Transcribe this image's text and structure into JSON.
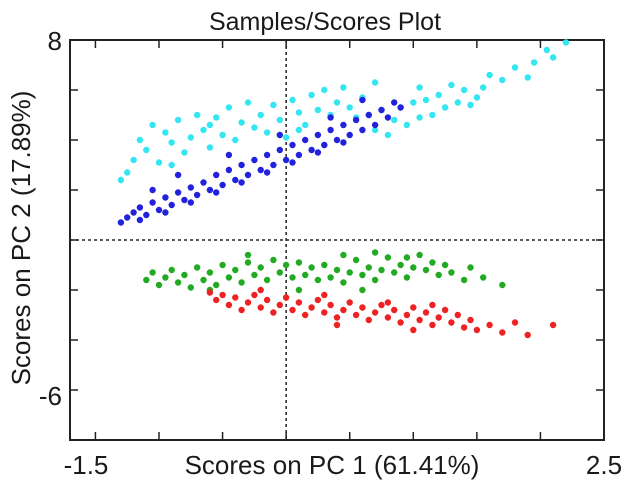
{
  "chart_data": {
    "type": "scatter",
    "title": "Samples/Scores Plot",
    "xlabel": "Scores on PC 1 (61.41%)",
    "ylabel": "Scores on PC 2 (17.89%)",
    "xlim": [
      -1.7,
      2.5
    ],
    "ylim": [
      -8,
      8
    ],
    "x_tick_labels": [
      "-1.5",
      "2.5"
    ],
    "y_tick_labels": [
      "8",
      "-6"
    ],
    "x_tick_values": [
      -1.5,
      2.5
    ],
    "y_tick_values": [
      8,
      -6
    ],
    "zero_lines": true,
    "grid": false,
    "legend": "none",
    "colors": {
      "cyan": "#33e6f2",
      "blue": "#2222dd",
      "green": "#22aa22",
      "red": "#ee2222",
      "axis": "#222222"
    },
    "series": [
      {
        "color": "cyan",
        "points": [
          [
            -1.3,
            2.4
          ],
          [
            -1.25,
            2.7
          ],
          [
            -1.2,
            3.2
          ],
          [
            -1.15,
            4.0
          ],
          [
            -1.1,
            3.6
          ],
          [
            -1.05,
            4.6
          ],
          [
            -1.0,
            3.1
          ],
          [
            -0.95,
            4.3
          ],
          [
            -0.9,
            3.9
          ],
          [
            -0.85,
            4.8
          ],
          [
            -0.8,
            3.5
          ],
          [
            -0.75,
            4.1
          ],
          [
            -0.7,
            5.0
          ],
          [
            -0.65,
            4.4
          ],
          [
            -0.6,
            3.7
          ],
          [
            -0.55,
            4.9
          ],
          [
            -0.5,
            4.2
          ],
          [
            -0.45,
            5.3
          ],
          [
            -0.4,
            4.0
          ],
          [
            -0.35,
            4.7
          ],
          [
            -0.3,
            5.5
          ],
          [
            -0.25,
            4.5
          ],
          [
            -0.2,
            5.0
          ],
          [
            -0.15,
            4.3
          ],
          [
            -0.1,
            5.4
          ],
          [
            -0.05,
            4.8
          ],
          [
            0.0,
            4.1
          ],
          [
            0.05,
            5.6
          ],
          [
            0.1,
            5.1
          ],
          [
            0.15,
            4.6
          ],
          [
            0.2,
            5.8
          ],
          [
            0.25,
            5.2
          ],
          [
            0.3,
            6.0
          ],
          [
            0.35,
            5.0
          ],
          [
            0.4,
            5.5
          ],
          [
            0.45,
            6.1
          ],
          [
            0.5,
            5.3
          ],
          [
            0.55,
            4.9
          ],
          [
            0.6,
            5.7
          ],
          [
            0.65,
            5.0
          ],
          [
            0.7,
            4.4
          ],
          [
            0.75,
            5.2
          ],
          [
            0.8,
            4.2
          ],
          [
            0.85,
            4.8
          ],
          [
            0.9,
            5.3
          ],
          [
            0.95,
            4.6
          ],
          [
            1.0,
            5.5
          ],
          [
            1.05,
            4.9
          ],
          [
            1.1,
            5.6
          ],
          [
            1.15,
            5.0
          ],
          [
            1.2,
            5.8
          ],
          [
            1.25,
            5.3
          ],
          [
            1.3,
            6.2
          ],
          [
            1.35,
            5.5
          ],
          [
            1.4,
            6.0
          ],
          [
            1.45,
            5.4
          ],
          [
            1.5,
            5.7
          ],
          [
            1.6,
            6.6
          ],
          [
            1.7,
            6.4
          ],
          [
            1.8,
            6.9
          ],
          [
            1.9,
            6.5
          ],
          [
            1.95,
            7.1
          ],
          [
            2.05,
            7.6
          ],
          [
            2.1,
            7.3
          ],
          [
            2.2,
            7.9
          ],
          [
            -0.9,
            3.0
          ],
          [
            -0.6,
            4.6
          ],
          [
            0.1,
            4.4
          ],
          [
            0.7,
            6.3
          ],
          [
            1.05,
            6.1
          ],
          [
            1.55,
            6.1
          ],
          [
            0.3,
            3.8
          ]
        ]
      },
      {
        "color": "blue",
        "points": [
          [
            -1.3,
            0.7
          ],
          [
            -1.25,
            0.9
          ],
          [
            -1.2,
            1.1
          ],
          [
            -1.15,
            1.3
          ],
          [
            -1.1,
            1.0
          ],
          [
            -1.05,
            1.5
          ],
          [
            -1.0,
            1.2
          ],
          [
            -0.95,
            1.7
          ],
          [
            -0.9,
            1.4
          ],
          [
            -0.85,
            1.9
          ],
          [
            -0.8,
            1.6
          ],
          [
            -0.75,
            2.1
          ],
          [
            -0.7,
            1.8
          ],
          [
            -0.65,
            2.3
          ],
          [
            -0.6,
            2.0
          ],
          [
            -0.55,
            2.6
          ],
          [
            -0.5,
            2.2
          ],
          [
            -0.45,
            2.8
          ],
          [
            -0.4,
            2.4
          ],
          [
            -0.35,
            3.0
          ],
          [
            -0.3,
            2.6
          ],
          [
            -0.25,
            3.2
          ],
          [
            -0.2,
            2.8
          ],
          [
            -0.15,
            3.4
          ],
          [
            -0.1,
            3.0
          ],
          [
            -0.05,
            3.6
          ],
          [
            0.0,
            3.2
          ],
          [
            0.05,
            3.8
          ],
          [
            0.1,
            3.4
          ],
          [
            0.15,
            4.0
          ],
          [
            0.2,
            3.6
          ],
          [
            0.25,
            4.2
          ],
          [
            0.3,
            3.8
          ],
          [
            0.35,
            4.4
          ],
          [
            0.4,
            4.0
          ],
          [
            0.45,
            4.6
          ],
          [
            0.5,
            4.2
          ],
          [
            0.55,
            4.8
          ],
          [
            0.6,
            4.4
          ],
          [
            0.65,
            5.0
          ],
          [
            0.7,
            4.6
          ],
          [
            0.75,
            5.2
          ],
          [
            0.8,
            4.9
          ],
          [
            0.85,
            5.5
          ],
          [
            0.9,
            5.3
          ],
          [
            -1.15,
            0.8
          ],
          [
            -0.95,
            1.1
          ],
          [
            -0.75,
            1.5
          ],
          [
            -0.55,
            1.9
          ],
          [
            -0.35,
            2.3
          ],
          [
            -0.15,
            2.7
          ],
          [
            0.05,
            3.1
          ],
          [
            0.25,
            3.5
          ],
          [
            0.45,
            3.9
          ],
          [
            -0.85,
            2.6
          ],
          [
            -0.45,
            3.4
          ],
          [
            -0.05,
            4.2
          ],
          [
            0.35,
            4.9
          ],
          [
            0.6,
            5.6
          ],
          [
            -1.05,
            2.0
          ]
        ]
      },
      {
        "color": "green",
        "points": [
          [
            -1.1,
            -1.6
          ],
          [
            -1.05,
            -1.3
          ],
          [
            -1.0,
            -1.8
          ],
          [
            -0.95,
            -1.5
          ],
          [
            -0.9,
            -1.2
          ],
          [
            -0.85,
            -1.7
          ],
          [
            -0.8,
            -1.4
          ],
          [
            -0.75,
            -1.9
          ],
          [
            -0.7,
            -1.1
          ],
          [
            -0.65,
            -1.6
          ],
          [
            -0.6,
            -1.3
          ],
          [
            -0.55,
            -1.8
          ],
          [
            -0.5,
            -1.0
          ],
          [
            -0.45,
            -1.5
          ],
          [
            -0.4,
            -1.2
          ],
          [
            -0.35,
            -1.7
          ],
          [
            -0.3,
            -0.9
          ],
          [
            -0.25,
            -1.4
          ],
          [
            -0.2,
            -1.1
          ],
          [
            -0.15,
            -1.6
          ],
          [
            -0.1,
            -0.8
          ],
          [
            -0.05,
            -1.3
          ],
          [
            0.0,
            -1.0
          ],
          [
            0.05,
            -1.5
          ],
          [
            0.1,
            -0.9
          ],
          [
            0.15,
            -1.4
          ],
          [
            0.2,
            -1.1
          ],
          [
            0.25,
            -1.6
          ],
          [
            0.3,
            -1.0
          ],
          [
            0.35,
            -1.5
          ],
          [
            0.4,
            -1.2
          ],
          [
            0.45,
            -1.7
          ],
          [
            0.5,
            -1.3
          ],
          [
            0.55,
            -0.8
          ],
          [
            0.6,
            -1.4
          ],
          [
            0.65,
            -1.1
          ],
          [
            0.7,
            -1.6
          ],
          [
            0.75,
            -1.2
          ],
          [
            0.8,
            -0.7
          ],
          [
            0.85,
            -1.3
          ],
          [
            0.9,
            -1.0
          ],
          [
            0.95,
            -1.5
          ],
          [
            1.0,
            -1.1
          ],
          [
            1.05,
            -0.6
          ],
          [
            1.1,
            -1.2
          ],
          [
            1.15,
            -0.9
          ],
          [
            1.2,
            -1.4
          ],
          [
            1.25,
            -1.0
          ],
          [
            1.3,
            -1.3
          ],
          [
            1.4,
            -1.6
          ],
          [
            1.45,
            -1.1
          ],
          [
            1.55,
            -1.5
          ],
          [
            1.7,
            -1.8
          ],
          [
            -0.3,
            -0.6
          ],
          [
            0.45,
            -0.6
          ],
          [
            0.7,
            -0.5
          ],
          [
            0.95,
            -0.7
          ],
          [
            -0.6,
            -2.0
          ],
          [
            0.1,
            -2.0
          ],
          [
            0.6,
            -2.0
          ]
        ]
      },
      {
        "color": "red",
        "points": [
          [
            -0.6,
            -2.1
          ],
          [
            -0.55,
            -2.4
          ],
          [
            -0.5,
            -2.2
          ],
          [
            -0.45,
            -2.6
          ],
          [
            -0.4,
            -2.3
          ],
          [
            -0.35,
            -2.8
          ],
          [
            -0.3,
            -2.5
          ],
          [
            -0.25,
            -2.2
          ],
          [
            -0.2,
            -2.7
          ],
          [
            -0.15,
            -2.4
          ],
          [
            -0.1,
            -2.9
          ],
          [
            -0.05,
            -2.6
          ],
          [
            0.0,
            -2.3
          ],
          [
            0.05,
            -2.8
          ],
          [
            0.1,
            -2.5
          ],
          [
            0.15,
            -3.0
          ],
          [
            0.2,
            -2.7
          ],
          [
            0.25,
            -2.4
          ],
          [
            0.3,
            -2.9
          ],
          [
            0.35,
            -2.6
          ],
          [
            0.4,
            -3.1
          ],
          [
            0.45,
            -2.8
          ],
          [
            0.5,
            -2.5
          ],
          [
            0.55,
            -3.0
          ],
          [
            0.6,
            -2.7
          ],
          [
            0.65,
            -3.2
          ],
          [
            0.7,
            -2.9
          ],
          [
            0.75,
            -2.6
          ],
          [
            0.8,
            -3.1
          ],
          [
            0.85,
            -2.8
          ],
          [
            0.9,
            -3.3
          ],
          [
            0.95,
            -3.0
          ],
          [
            1.0,
            -2.7
          ],
          [
            1.05,
            -3.2
          ],
          [
            1.1,
            -2.9
          ],
          [
            1.15,
            -3.4
          ],
          [
            1.2,
            -3.1
          ],
          [
            1.25,
            -2.8
          ],
          [
            1.3,
            -3.3
          ],
          [
            1.35,
            -3.0
          ],
          [
            1.4,
            -3.5
          ],
          [
            1.45,
            -3.2
          ],
          [
            1.5,
            -3.6
          ],
          [
            1.6,
            -3.4
          ],
          [
            1.7,
            -3.7
          ],
          [
            1.8,
            -3.3
          ],
          [
            1.9,
            -3.8
          ],
          [
            2.1,
            -3.4
          ],
          [
            -0.2,
            -2.0
          ],
          [
            0.3,
            -2.2
          ],
          [
            0.8,
            -2.5
          ],
          [
            1.15,
            -2.6
          ],
          [
            0.4,
            -3.4
          ],
          [
            1.0,
            -3.6
          ]
        ]
      }
    ]
  }
}
